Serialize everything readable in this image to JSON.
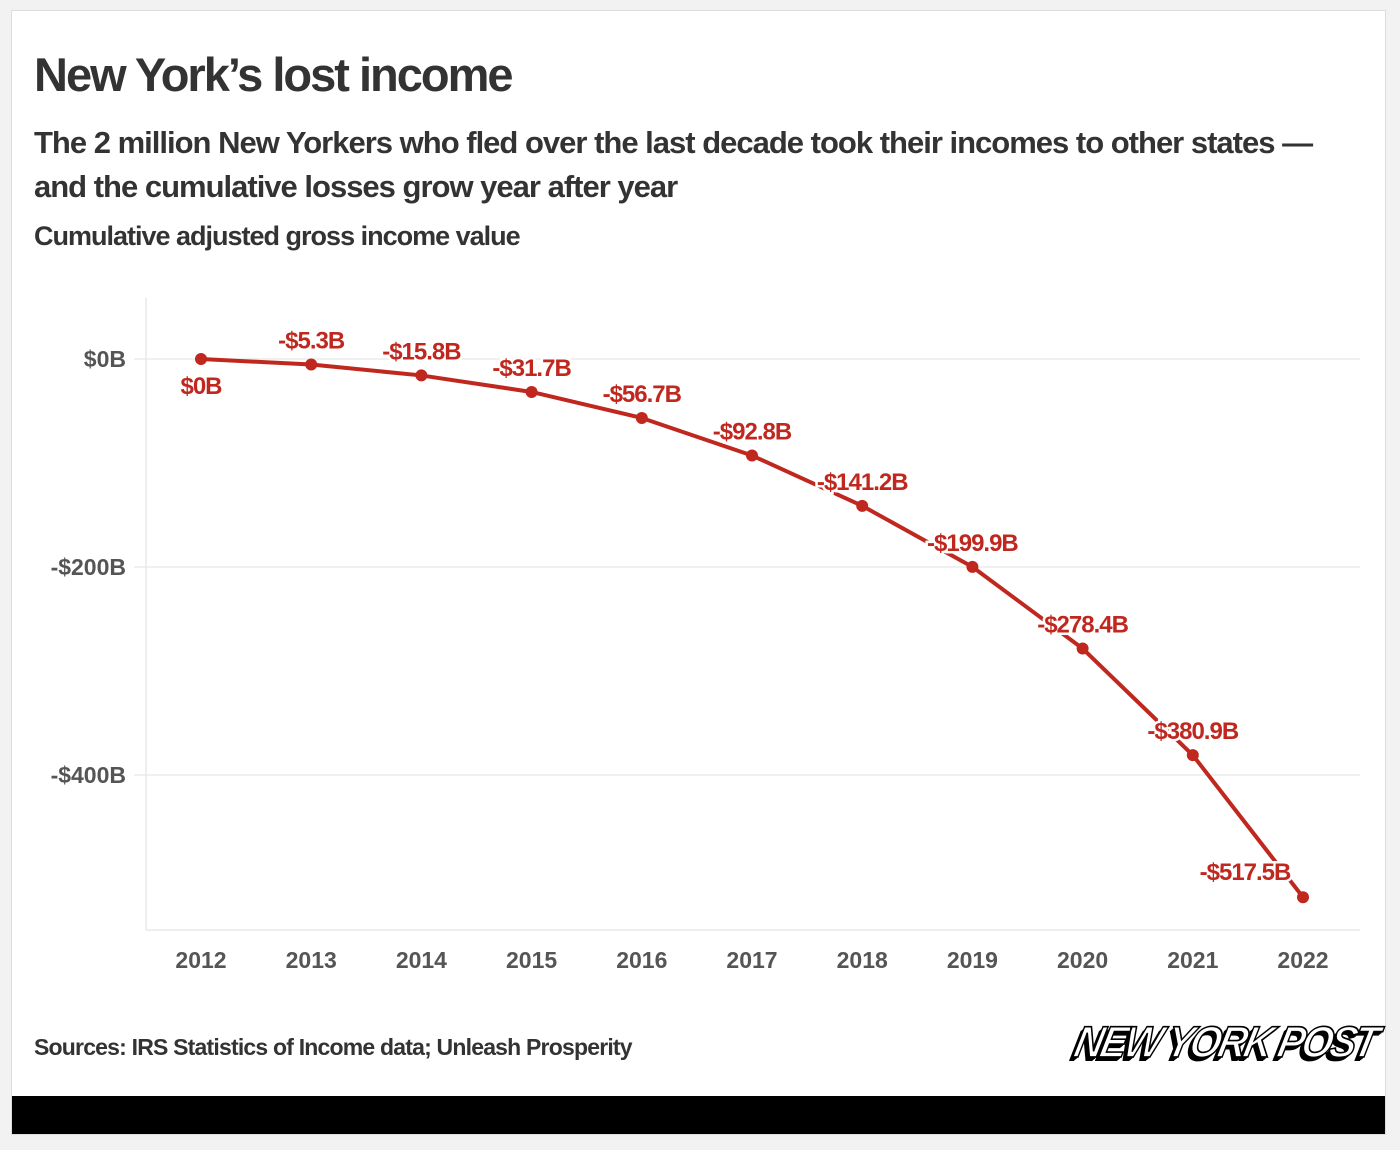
{
  "header": {
    "title": "New York’s lost income",
    "subtitle": "The 2 million New Yorkers who fled over the last decade took their incomes to other states — and the cumulative losses grow year after year",
    "unit_label": "Cumulative adjusted gross income value"
  },
  "footer": {
    "source": "Sources: IRS Statistics of Income data; Unleash Prosperity",
    "logo_text": "NEW YORK POST"
  },
  "chart_data": {
    "type": "line",
    "title": "New York’s lost income",
    "ylabel": "Cumulative adjusted gross income value",
    "x": [
      2012,
      2013,
      2014,
      2015,
      2016,
      2017,
      2018,
      2019,
      2020,
      2021,
      2022
    ],
    "series": [
      {
        "values": [
          0,
          -5.3,
          -15.8,
          -31.7,
          -56.7,
          -92.8,
          -141.2,
          -199.9,
          -278.4,
          -380.9,
          -517.5
        ],
        "data_labels": [
          "$0B",
          "-$5.3B",
          "-$15.8B",
          "-$31.7B",
          "-$56.7B",
          "-$92.8B",
          "-$141.2B",
          "-$199.9B",
          "-$278.4B",
          "-$380.9B",
          "-$517.5B"
        ]
      }
    ],
    "yticks": [
      0,
      -200,
      -400
    ],
    "ytick_labels": [
      "$0B",
      "-$200B",
      "-$400B"
    ],
    "xtick_labels": [
      "2012",
      "2013",
      "2014",
      "2015",
      "2016",
      "2017",
      "2018",
      "2019",
      "2020",
      "2021",
      "2022"
    ],
    "ylim": [
      -550,
      57
    ],
    "grid": "horizontal",
    "colors": {
      "line": "#c0281f",
      "axis_text": "#555555",
      "grid": "#e8e8e8"
    }
  }
}
